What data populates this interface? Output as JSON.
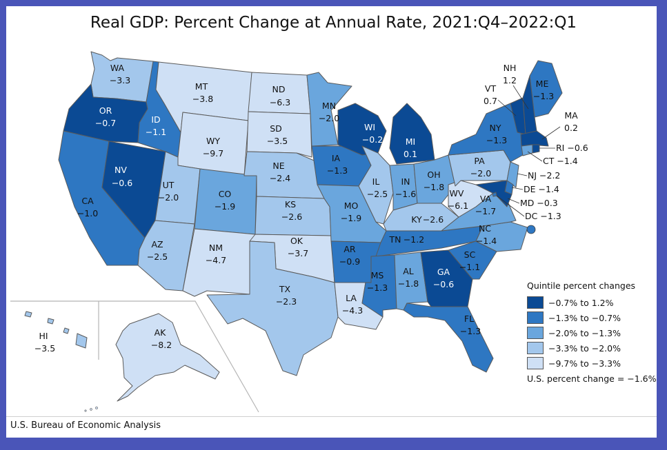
{
  "title": "Real GDP: Percent Change at Annual Rate, 2021:Q4–2022:Q1",
  "source": "U.S. Bureau of Economic Analysis",
  "legend": {
    "heading": "Quintile percent changes",
    "items": [
      {
        "label": "−0.7% to 1.2%",
        "color": "#0b4a94"
      },
      {
        "label": "−1.3% to −0.7%",
        "color": "#2e77c2"
      },
      {
        "label": "−2.0% to −1.3%",
        "color": "#6aa6dd"
      },
      {
        "label": "−3.3% to −2.0%",
        "color": "#a3c7ec"
      },
      {
        "label": "−9.7% to −3.3%",
        "color": "#cfe0f5"
      }
    ],
    "us_change": "U.S. percent change = −1.6%"
  },
  "states": {
    "WA": {
      "abbr": "WA",
      "value": "−3.3"
    },
    "OR": {
      "abbr": "OR",
      "value": "−0.7"
    },
    "CA": {
      "abbr": "CA",
      "value": "−1.0"
    },
    "NV": {
      "abbr": "NV",
      "value": "−0.6"
    },
    "ID": {
      "abbr": "ID",
      "value": "−1.1"
    },
    "MT": {
      "abbr": "MT",
      "value": "−3.8"
    },
    "WY": {
      "abbr": "WY",
      "value": "−9.7"
    },
    "UT": {
      "abbr": "UT",
      "value": "−2.0"
    },
    "AZ": {
      "abbr": "AZ",
      "value": "−2.5"
    },
    "CO": {
      "abbr": "CO",
      "value": "−1.9"
    },
    "NM": {
      "abbr": "NM",
      "value": "−4.7"
    },
    "ND": {
      "abbr": "ND",
      "value": "−6.3"
    },
    "SD": {
      "abbr": "SD",
      "value": "−3.5"
    },
    "NE": {
      "abbr": "NE",
      "value": "−2.4"
    },
    "KS": {
      "abbr": "KS",
      "value": "−2.6"
    },
    "OK": {
      "abbr": "OK",
      "value": "−3.7"
    },
    "TX": {
      "abbr": "TX",
      "value": "−2.3"
    },
    "MN": {
      "abbr": "MN",
      "value": "−2.0"
    },
    "IA": {
      "abbr": "IA",
      "value": "−1.3"
    },
    "MO": {
      "abbr": "MO",
      "value": "−1.9"
    },
    "AR": {
      "abbr": "AR",
      "value": "−0.9"
    },
    "LA": {
      "abbr": "LA",
      "value": "−4.3"
    },
    "WI": {
      "abbr": "WI",
      "value": "−0.2"
    },
    "IL": {
      "abbr": "IL",
      "value": "−2.5"
    },
    "MI": {
      "abbr": "MI",
      "value": "0.1"
    },
    "IN": {
      "abbr": "IN",
      "value": "−1.6"
    },
    "OH": {
      "abbr": "OH",
      "value": "−1.8"
    },
    "KY": {
      "abbr": "KY",
      "value": "−2.6"
    },
    "TN": {
      "abbr": "TN",
      "value": "−1.2"
    },
    "MS": {
      "abbr": "MS",
      "value": "−1.3"
    },
    "AL": {
      "abbr": "AL",
      "value": "−1.8"
    },
    "GA": {
      "abbr": "GA",
      "value": "−0.6"
    },
    "FL": {
      "abbr": "FL",
      "value": "−1.3"
    },
    "SC": {
      "abbr": "SC",
      "value": "−1.1"
    },
    "NC": {
      "abbr": "NC",
      "value": "−1.4"
    },
    "VA": {
      "abbr": "VA",
      "value": "−1.7"
    },
    "WV": {
      "abbr": "WV",
      "value": "−6.1"
    },
    "PA": {
      "abbr": "PA",
      "value": "−2.0"
    },
    "NY": {
      "abbr": "NY",
      "value": "−1.3"
    },
    "ME": {
      "abbr": "ME",
      "value": "−1.3"
    },
    "VT": {
      "abbr": "VT",
      "value": "0.7"
    },
    "NH": {
      "abbr": "NH",
      "value": "1.2"
    },
    "MA": {
      "abbr": "MA",
      "value": "0.2"
    },
    "RI": {
      "abbr": "RI",
      "value": "−0.6"
    },
    "CT": {
      "abbr": "CT",
      "value": "−1.4"
    },
    "NJ": {
      "abbr": "NJ",
      "value": "−2.2"
    },
    "DE": {
      "abbr": "DE",
      "value": "−1.4"
    },
    "MD": {
      "abbr": "MD",
      "value": "−0.3"
    },
    "DC": {
      "abbr": "DC",
      "value": "−1.3"
    },
    "AK": {
      "abbr": "AK",
      "value": "−8.2"
    },
    "HI": {
      "abbr": "HI",
      "value": "−3.5"
    }
  }
}
